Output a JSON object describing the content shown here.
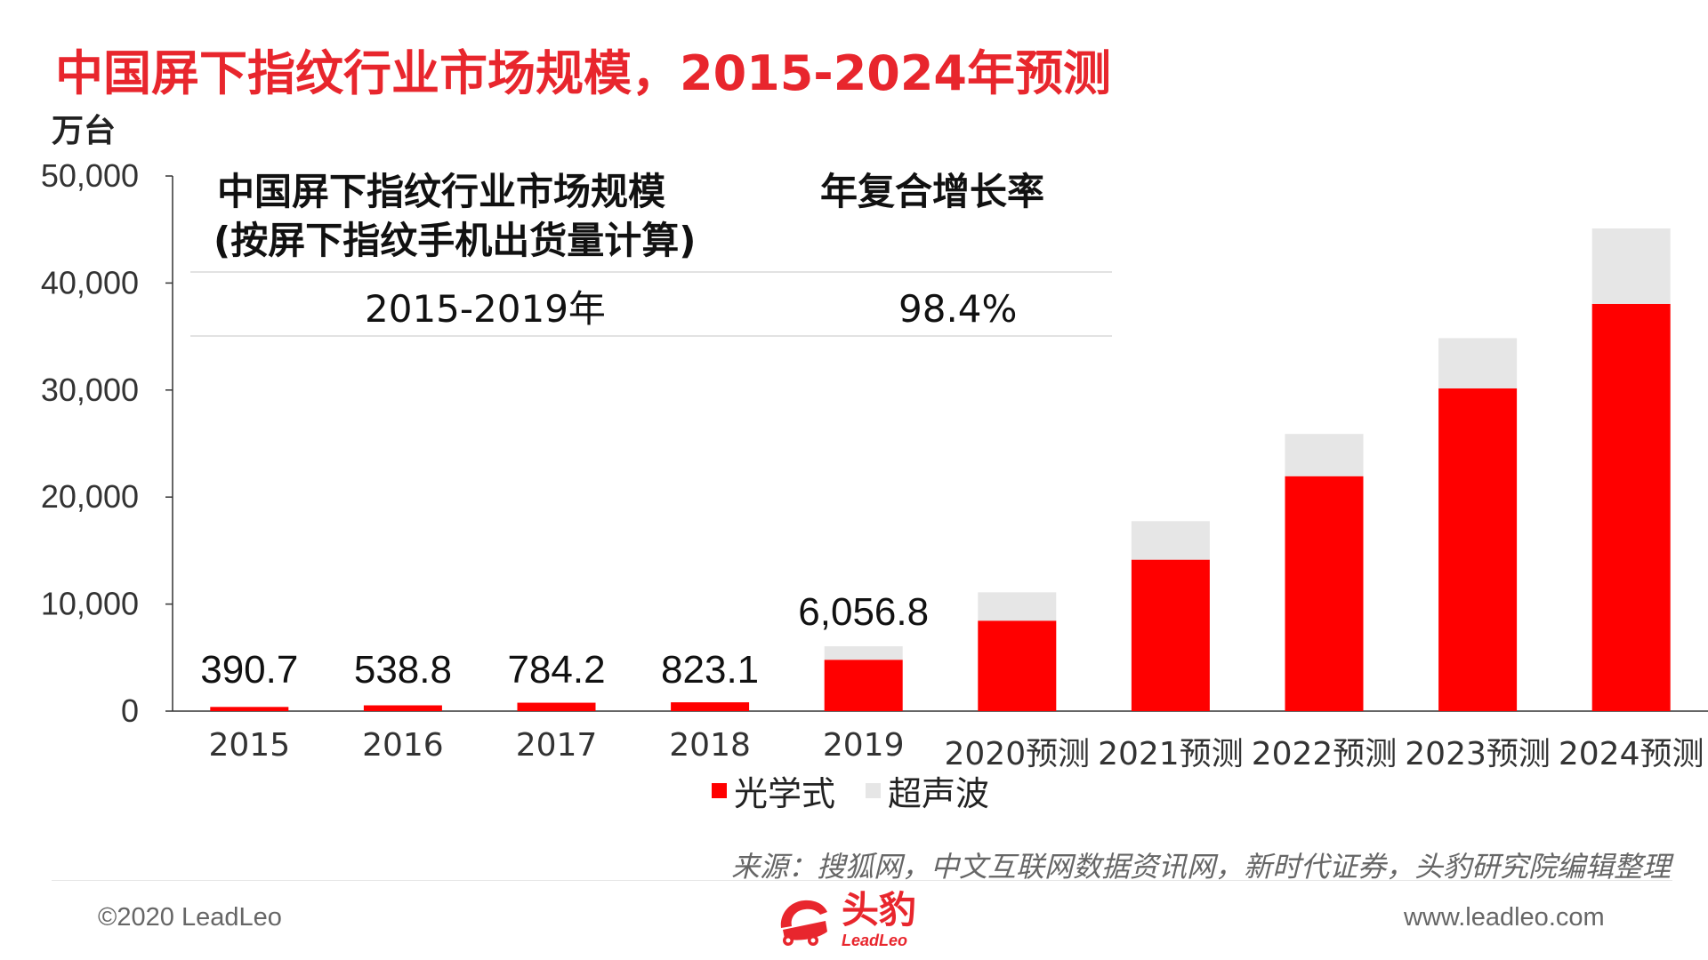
{
  "header": {
    "title": "中国屏下指纹行业市场规模，2015-2024年预测",
    "unit": "万台"
  },
  "cagr_table": {
    "col1_header_line1": "中国屏下指纹行业市场规模",
    "col1_header_line2": "(按屏下指纹手机出货量计算)",
    "col2_header": "年复合增长率",
    "period": "2015-2019年",
    "rate": "98.4%"
  },
  "legend": {
    "optical": "光学式",
    "ultrasonic": "超声波"
  },
  "footer": {
    "source": "来源：搜狐网，中文互联网数据资讯网，新时代证券，头豹研究院编辑整理",
    "copyright": "©2020 LeadLeo",
    "website": "www.leadleo.com",
    "logo_cn": "头豹",
    "logo_en": "LeadLeo"
  },
  "colors": {
    "title": "#e8262d",
    "optical": "#ff0000",
    "ultrasonic": "#e6e6e6"
  },
  "chart_data": {
    "type": "bar",
    "stacked": true,
    "categories": [
      "2015",
      "2016",
      "2017",
      "2018",
      "2019",
      "2020预测",
      "2021预测",
      "2022预测",
      "2023预测",
      "2024预测"
    ],
    "series": [
      {
        "name": "光学式",
        "values": [
          390.7,
          538.8,
          784.2,
          823.1,
          4800,
          8450,
          14150,
          21950,
          30150,
          38050
        ]
      },
      {
        "name": "超声波",
        "values": [
          0,
          0,
          0,
          0,
          1256.8,
          2650,
          3600,
          3950,
          4700,
          7050
        ]
      }
    ],
    "data_labels": [
      "390.7",
      "538.8",
      "784.2",
      "823.1",
      "6,056.8",
      "",
      "",
      "",
      "",
      ""
    ],
    "ylim": [
      0,
      50000
    ],
    "yticks": [
      "0",
      "10,000",
      "20,000",
      "30,000",
      "40,000",
      "50,000"
    ],
    "ylabel": "万台",
    "legend_position": "bottom",
    "grid": false
  }
}
